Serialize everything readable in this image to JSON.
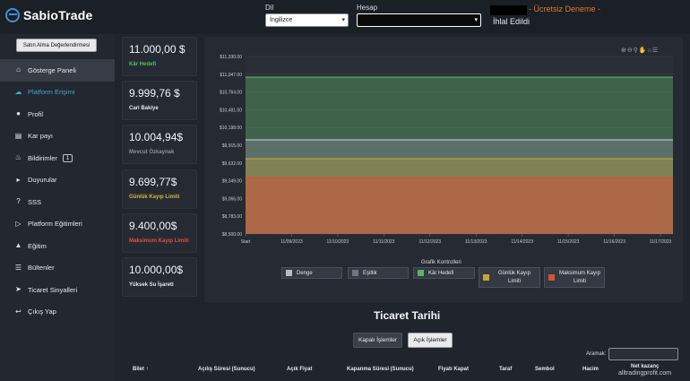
{
  "header": {
    "brand": "SabioTrade",
    "language_label": "Dil",
    "language_value": "İngilizce",
    "account_label": "Hesap",
    "trial_text": "- Ücretsiz Deneme -",
    "status_text": "İhlal Edildi"
  },
  "sidebar": {
    "evaluation_button": "Satın Alma Değerlendirmesi",
    "items": [
      {
        "label": "Gösterge Paneli",
        "icon": "home-icon"
      },
      {
        "label": "Platform Erişimi",
        "icon": "cloud-download-icon"
      },
      {
        "label": "Profil",
        "icon": "user-icon"
      },
      {
        "label": "Kar payı",
        "icon": "wallet-icon"
      },
      {
        "label": "Bildirimler",
        "icon": "bell-icon",
        "badge": "1"
      },
      {
        "label": "Duyurular",
        "icon": "megaphone-icon"
      },
      {
        "label": "SSS",
        "icon": "question-icon"
      },
      {
        "label": "Platform Eğitimleri",
        "icon": "play-icon"
      },
      {
        "label": "Eğitim",
        "icon": "graduation-icon"
      },
      {
        "label": "Bültenler",
        "icon": "newsletter-icon"
      },
      {
        "label": "Ticaret Sinyalleri",
        "icon": "telegram-icon"
      },
      {
        "label": "Çıkış Yap",
        "icon": "logout-icon"
      }
    ]
  },
  "stats": [
    {
      "value": "11.000,00 $",
      "label": "Kâr Hedefi",
      "color": "#4fbf6a"
    },
    {
      "value": "9.999,76 $",
      "label": "Cari Bakiye",
      "color": "#e6e8ec"
    },
    {
      "value": "10.004,94$",
      "label": "Mevcut Özkaynak",
      "color": "#8a909a"
    },
    {
      "value": "9.699,77$",
      "label": "Günlük Kayıp Limiti",
      "color": "#d9b43a"
    },
    {
      "value": "9.400,00$",
      "label": "Maksimum Kayıp Limiti",
      "color": "#e0513a"
    },
    {
      "value": "10.000,00$",
      "label": "Yüksek Su İşareti",
      "color": "#e6e8ec"
    }
  ],
  "chart_data": {
    "type": "area",
    "y_ticks": [
      "$11,330.00",
      "$11,047.00",
      "$10,764.00",
      "$10,481.00",
      "$10,198.00",
      "$9,915.00",
      "$9,632.00",
      "$9,349.00",
      "$9,066.00",
      "$8,783.00",
      "$8,500.00"
    ],
    "x_ticks": [
      "Start",
      "11/09/2023",
      "11/10/2023",
      "11/11/2023",
      "11/12/2023",
      "11/13/2023",
      "11/14/2023",
      "11/15/2023",
      "11/16/2023",
      "11/17/2023"
    ],
    "ylim": [
      8500,
      11330
    ],
    "grid": true,
    "legend_title": "Grafik Kontrolleri",
    "legend_placement": "bottom",
    "series": [
      {
        "name": "Denge",
        "value": 9999.76,
        "color": "#b9bcc2"
      },
      {
        "name": "Eşitlik",
        "value": 10004.94,
        "color": "#6f7684"
      },
      {
        "name": "Kâr Hedefi",
        "value": 11000,
        "color": "#5fae6a"
      },
      {
        "name": "Günlük Kayıp Limiti",
        "value": 9699.77,
        "color": "#c9a435"
      },
      {
        "name": "Maksimum Kayıp Limiti",
        "value": 9400,
        "color": "#d2543a"
      }
    ]
  },
  "trade_history": {
    "title": "Ticaret Tarihi",
    "closed_button": "Kapalı İşlemler",
    "open_button": "Açık İşlemler",
    "search_label": "Aramak:",
    "search_placeholder": "",
    "columns": [
      "Bilet",
      "Açılış Süresi (Sunucu)",
      "Açık Fiyat",
      "Kapanma Süresi (Sunucu)",
      "Fiyatı Kapat",
      "Taraf",
      "Sembol",
      "Hacim",
      "Net kazanç"
    ]
  },
  "watermark": "alltradingprofit.com"
}
